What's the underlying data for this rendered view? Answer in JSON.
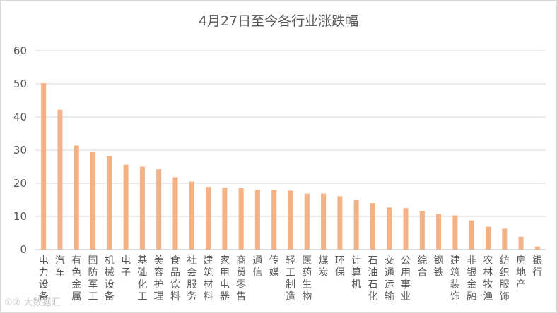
{
  "chart_data": {
    "type": "bar",
    "title": "4月27日至今各行业涨跌幅",
    "xlabel": "",
    "ylabel": "",
    "ylim": [
      0,
      60
    ],
    "yticks": [
      0,
      10,
      20,
      30,
      40,
      50,
      60
    ],
    "grid": true,
    "legend": "none",
    "bar_color": "#F4B183",
    "categories": [
      "电力设备",
      "汽车",
      "有色金属",
      "国防军工",
      "机械设备",
      "电子",
      "基础化工",
      "美容护理",
      "食品饮料",
      "社会服务",
      "建筑材料",
      "家用电器",
      "商贸零售",
      "通信",
      "传媒",
      "轻工制造",
      "医药生物",
      "煤炭",
      "环保",
      "计算机",
      "石油石化",
      "交通运输",
      "公用事业",
      "综合",
      "钢铁",
      "建筑装饰",
      "非银金融",
      "农林牧渔",
      "纺织服饰",
      "房地产",
      "银行"
    ],
    "values": [
      50.2,
      42.2,
      31.4,
      29.5,
      28.2,
      25.6,
      25.0,
      24.2,
      21.8,
      20.5,
      18.9,
      18.7,
      18.5,
      18.1,
      18.0,
      17.8,
      16.9,
      16.9,
      16.1,
      15.0,
      14.0,
      12.7,
      12.5,
      11.6,
      10.8,
      10.3,
      8.8,
      6.9,
      6.3,
      3.9,
      0.9
    ]
  },
  "watermark": "①② 大数据汇"
}
